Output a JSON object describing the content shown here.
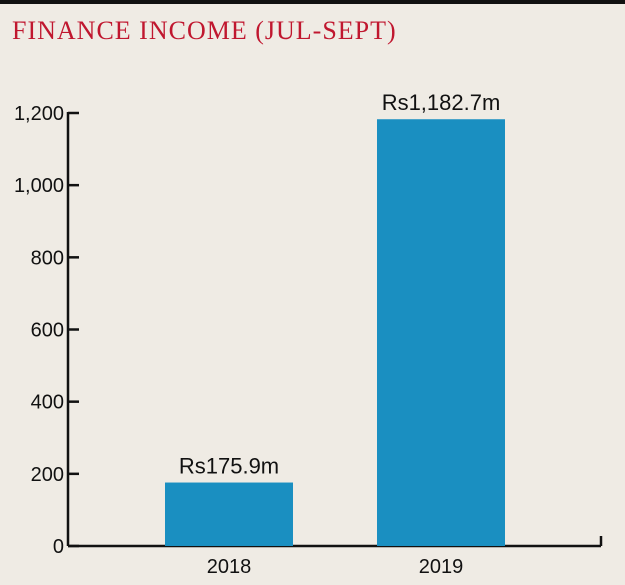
{
  "chart_data": {
    "type": "bar",
    "title": "FINANCE INCOME (JUL-SEPT)",
    "categories": [
      "2018",
      "2019"
    ],
    "values": [
      175.9,
      1182.7
    ],
    "data_labels": [
      "Rs175.9m",
      "Rs1,182.7m"
    ],
    "ylim": [
      0,
      1200
    ],
    "yticks": [
      0,
      200,
      400,
      600,
      800,
      1000,
      1200
    ],
    "ytick_labels": [
      "0",
      "200",
      "400",
      "600",
      "800",
      "1,000",
      "1,200"
    ],
    "xlabel": "",
    "ylabel": "",
    "grid": false,
    "bar_color": "#1a8fc1",
    "title_color": "#c0172f"
  }
}
